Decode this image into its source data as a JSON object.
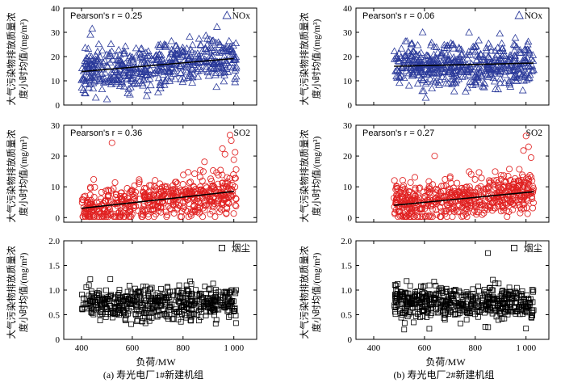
{
  "figure": {
    "caption_a": "(a) 寿光电厂1#新建机组",
    "caption_b": "(b) 寿光电厂2#新建机组",
    "xlabel": "负荷/MW",
    "ylabel_line1": "大气污染物排放质量浓",
    "ylabel_line2": "度小时均值/(mg/m³)"
  },
  "chart_data": [
    {
      "id": "a-nox",
      "type": "scatter",
      "panel": "(a)",
      "pollutant": "NOx",
      "marker": "triangle",
      "color": "#2b3a9a",
      "annotation": "Pearson's r = 0.25",
      "legend": "NOx",
      "xlim": [
        330,
        1090
      ],
      "xticks": [
        400,
        600,
        800,
        1000
      ],
      "xticklabels": [
        "400",
        "600",
        "800",
        "1 000"
      ],
      "ylim": [
        0,
        40
      ],
      "yticks": [
        0,
        10,
        20,
        30,
        40
      ],
      "trend": {
        "x": [
          400,
          1000
        ],
        "y": [
          13.8,
          19.2
        ]
      },
      "point_cloud": {
        "count": 520,
        "x_range": [
          400,
          1010
        ],
        "y_mean_at_xmin": 13.8,
        "y_mean_at_xmax": 19.2,
        "y_spread": 6.5,
        "y_min": 2,
        "y_max": 34,
        "seed": 11
      }
    },
    {
      "id": "a-so2",
      "type": "scatter",
      "panel": "(a)",
      "pollutant": "SO2",
      "marker": "circle",
      "color": "#e02020",
      "annotation": "Pearson's r = 0.36",
      "legend": "SO2",
      "xlim": [
        330,
        1090
      ],
      "xticks": [
        400,
        600,
        800,
        1000
      ],
      "xticklabels": [
        "400",
        "600",
        "800",
        "1 000"
      ],
      "ylim": [
        -1.5,
        30
      ],
      "yticks": [
        0,
        10,
        20,
        30
      ],
      "trend": {
        "x": [
          400,
          1000
        ],
        "y": [
          3.0,
          8.5
        ]
      },
      "point_cloud": {
        "count": 560,
        "x_range": [
          400,
          1010
        ],
        "y_mean_at_xmin": 3.0,
        "y_mean_at_xmax": 8.5,
        "y_spread": 4.2,
        "y_min": 0.3,
        "y_max": 24,
        "seed": 23
      },
      "outliers": [
        {
          "x": 520,
          "y": 24.3
        },
        {
          "x": 985,
          "y": 26.8
        },
        {
          "x": 990,
          "y": 25.0
        },
        {
          "x": 955,
          "y": 22.4
        },
        {
          "x": 965,
          "y": 20.6
        },
        {
          "x": 1005,
          "y": 21.2
        },
        {
          "x": 1000,
          "y": 18.8
        }
      ]
    },
    {
      "id": "a-dust",
      "type": "scatter",
      "panel": "(a)",
      "pollutant": "烟尘",
      "marker": "square",
      "color": "#000000",
      "annotation": "",
      "legend": "烟尘",
      "xlim": [
        330,
        1090
      ],
      "xticks": [
        400,
        600,
        800,
        1000
      ],
      "xticklabels": [
        "400",
        "600",
        "800",
        "1 000"
      ],
      "ylim": [
        0,
        2.0
      ],
      "yticks": [
        0,
        0.5,
        1.0,
        1.5,
        2.0
      ],
      "yticklabels": [
        "0",
        "0.5",
        "1.0",
        "1.5",
        "2.0"
      ],
      "trend": null,
      "point_cloud": {
        "count": 520,
        "x_range": [
          400,
          1010
        ],
        "y_mean_at_xmin": 0.72,
        "y_mean_at_xmax": 0.72,
        "y_spread": 0.22,
        "y_min": 0.05,
        "y_max": 1.38,
        "seed": 37
      }
    },
    {
      "id": "b-nox",
      "type": "scatter",
      "panel": "(b)",
      "pollutant": "NOx",
      "marker": "triangle",
      "color": "#2b3a9a",
      "annotation": "Pearson's r = 0.06",
      "legend": "NOx",
      "xlim": [
        330,
        1090
      ],
      "xticks": [
        400,
        600,
        800,
        1000
      ],
      "xticklabels": [
        "400",
        "600",
        "800",
        "1 000"
      ],
      "ylim": [
        0,
        40
      ],
      "yticks": [
        0,
        10,
        20,
        30,
        40
      ],
      "trend": {
        "x": [
          480,
          1030
        ],
        "y": [
          16.0,
          17.3
        ]
      },
      "point_cloud": {
        "count": 520,
        "x_range": [
          480,
          1030
        ],
        "y_mean_at_xmin": 16.0,
        "y_mean_at_xmax": 17.3,
        "y_spread": 6.0,
        "y_min": 3,
        "y_max": 30,
        "seed": 51
      }
    },
    {
      "id": "b-so2",
      "type": "scatter",
      "panel": "(b)",
      "pollutant": "SO2",
      "marker": "circle",
      "color": "#e02020",
      "annotation": "Pearson's r = 0.27",
      "legend": "SO2",
      "xlim": [
        330,
        1090
      ],
      "xticks": [
        400,
        600,
        800,
        1000
      ],
      "xticklabels": [
        "400",
        "600",
        "800",
        "1 000"
      ],
      "ylim": [
        -1.5,
        30
      ],
      "yticks": [
        0,
        10,
        20,
        30
      ],
      "trend": {
        "x": [
          480,
          1030
        ],
        "y": [
          4.0,
          8.4
        ]
      },
      "point_cloud": {
        "count": 560,
        "x_range": [
          480,
          1030
        ],
        "y_mean_at_xmin": 4.0,
        "y_mean_at_xmax": 8.4,
        "y_spread": 4.0,
        "y_min": 0.3,
        "y_max": 21,
        "seed": 67
      },
      "outliers": [
        {
          "x": 1000,
          "y": 26.5
        },
        {
          "x": 1010,
          "y": 23.0
        },
        {
          "x": 640,
          "y": 20.0
        },
        {
          "x": 990,
          "y": 21.8
        },
        {
          "x": 1020,
          "y": 19.5
        }
      ]
    },
    {
      "id": "b-dust",
      "type": "scatter",
      "panel": "(b)",
      "pollutant": "烟尘",
      "marker": "square",
      "color": "#000000",
      "annotation": "",
      "legend": "烟尘",
      "xlim": [
        330,
        1090
      ],
      "xticks": [
        400,
        600,
        800,
        1000
      ],
      "xticklabels": [
        "400",
        "600",
        "800",
        "1 000"
      ],
      "ylim": [
        0,
        2.0
      ],
      "yticks": [
        0,
        0.5,
        1.0,
        1.5,
        2.0
      ],
      "yticklabels": [
        "0",
        "0.5",
        "1.0",
        "1.5",
        "2.0"
      ],
      "trend": null,
      "point_cloud": {
        "count": 520,
        "x_range": [
          480,
          1030
        ],
        "y_mean_at_xmin": 0.78,
        "y_mean_at_xmax": 0.72,
        "y_spread": 0.22,
        "y_min": 0.08,
        "y_max": 1.4,
        "seed": 83
      },
      "outliers": [
        {
          "x": 850,
          "y": 1.75
        },
        {
          "x": 520,
          "y": 0.2
        },
        {
          "x": 1000,
          "y": 0.22
        }
      ]
    }
  ]
}
